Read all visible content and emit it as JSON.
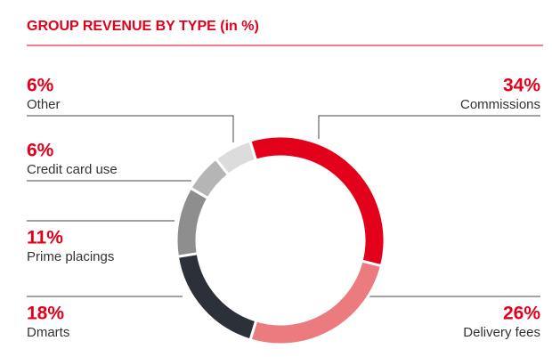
{
  "chart_data": {
    "type": "pie",
    "title": "GROUP REVENUE BY TYPE (in %)",
    "categories": [
      "Commissions",
      "Delivery fees",
      "Dmarts",
      "Prime placings",
      "Credit card use",
      "Other"
    ],
    "values": [
      34,
      26,
      18,
      11,
      6,
      6
    ],
    "value_labels": [
      "34%",
      "26%",
      "18%",
      "11%",
      "6%",
      "6%"
    ],
    "colors": [
      "#e3001b",
      "#ec7b80",
      "#2c3038",
      "#8e8e8e",
      "#b5b5b5",
      "#dcdcdc"
    ]
  }
}
